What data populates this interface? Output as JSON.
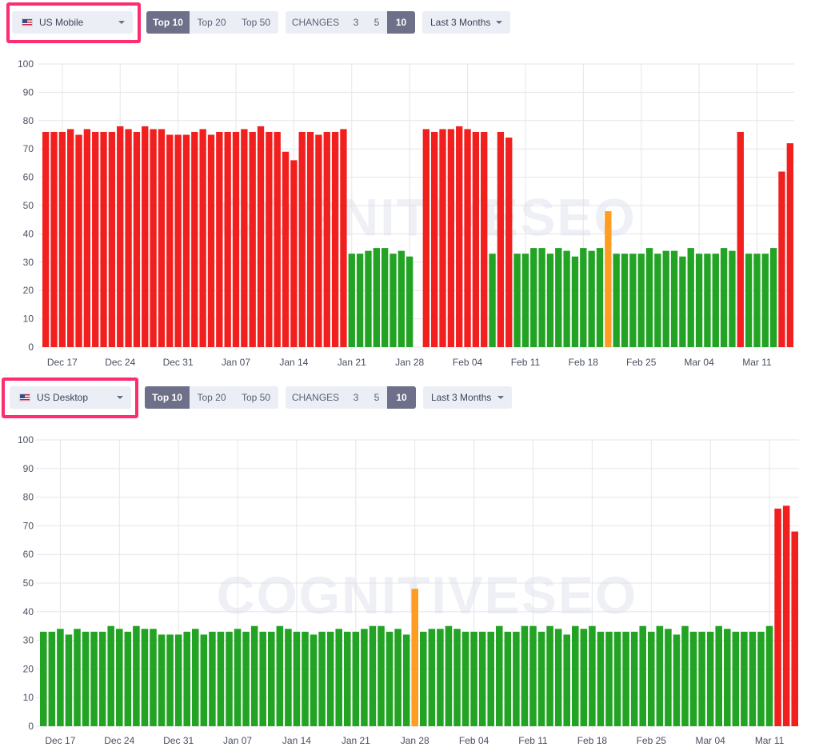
{
  "colors": {
    "red": "#f21f1f",
    "green": "#22a323",
    "orange": "#ff9d22",
    "grid": "#e4e6ea",
    "accent": "#ff2d6f",
    "active": "#6d7088"
  },
  "watermark": "COGNITIVESEO",
  "panels": [
    {
      "device_select": {
        "flag_icon": "us-flag-icon",
        "value": "US Mobile"
      },
      "top_tabs": [
        "Top 10",
        "Top 20",
        "Top 50"
      ],
      "top_active": "Top 10",
      "changes": {
        "label": "CHANGES",
        "options": [
          "3",
          "5",
          "10"
        ],
        "active": "10"
      },
      "period_select": {
        "value": "Last 3 Months"
      }
    },
    {
      "device_select": {
        "flag_icon": "us-flag-icon",
        "value": "US Desktop"
      },
      "top_tabs": [
        "Top 10",
        "Top 20",
        "Top 50"
      ],
      "top_active": "Top 10",
      "changes": {
        "label": "CHANGES",
        "options": [
          "3",
          "5",
          "10"
        ],
        "active": "10"
      },
      "period_select": {
        "value": "Last 3 Months"
      }
    }
  ],
  "chart_data": [
    {
      "type": "bar",
      "title": "",
      "ylim": [
        0,
        100
      ],
      "yticks": [
        0,
        10,
        20,
        30,
        40,
        50,
        60,
        70,
        80,
        90,
        100
      ],
      "xticks": [
        "Dec 17",
        "Dec 24",
        "Dec 31",
        "Jan 07",
        "Jan 14",
        "Jan 21",
        "Jan 28",
        "Feb 04",
        "Feb 11",
        "Feb 18",
        "Feb 25",
        "Mar 04",
        "Mar 11"
      ],
      "grid": true,
      "values": [
        76,
        76,
        76,
        77,
        75,
        77,
        76,
        76,
        76,
        78,
        77,
        76,
        78,
        77,
        77,
        75,
        75,
        75,
        76,
        77,
        75,
        76,
        76,
        76,
        77,
        76,
        78,
        76,
        76,
        69,
        66,
        76,
        76,
        75,
        76,
        76,
        77,
        33,
        33,
        34,
        35,
        35,
        33,
        34,
        32,
        0,
        77,
        76,
        77,
        77,
        78,
        77,
        76,
        76,
        33,
        76,
        74,
        33,
        33,
        35,
        35,
        33,
        35,
        34,
        32,
        35,
        34,
        35,
        48,
        33,
        33,
        33,
        33,
        35,
        33,
        34,
        34,
        32,
        35,
        33,
        33,
        33,
        35,
        34,
        76,
        33,
        33,
        33,
        35,
        62,
        72
      ],
      "colors": [
        "red",
        "red",
        "red",
        "red",
        "red",
        "red",
        "red",
        "red",
        "red",
        "red",
        "red",
        "red",
        "red",
        "red",
        "red",
        "red",
        "red",
        "red",
        "red",
        "red",
        "red",
        "red",
        "red",
        "red",
        "red",
        "red",
        "red",
        "red",
        "red",
        "red",
        "red",
        "red",
        "red",
        "red",
        "red",
        "red",
        "red",
        "green",
        "green",
        "green",
        "green",
        "green",
        "green",
        "green",
        "green",
        "none",
        "red",
        "red",
        "red",
        "red",
        "red",
        "red",
        "red",
        "red",
        "green",
        "red",
        "red",
        "green",
        "green",
        "green",
        "green",
        "green",
        "green",
        "green",
        "green",
        "green",
        "green",
        "green",
        "orange",
        "green",
        "green",
        "green",
        "green",
        "green",
        "green",
        "green",
        "green",
        "green",
        "green",
        "green",
        "green",
        "green",
        "green",
        "green",
        "red",
        "green",
        "green",
        "green",
        "green",
        "red",
        "red"
      ]
    },
    {
      "type": "bar",
      "title": "",
      "ylim": [
        0,
        100
      ],
      "yticks": [
        0,
        10,
        20,
        30,
        40,
        50,
        60,
        70,
        80,
        90,
        100
      ],
      "xticks": [
        "Dec 17",
        "Dec 24",
        "Dec 31",
        "Jan 07",
        "Jan 14",
        "Jan 21",
        "Jan 28",
        "Feb 04",
        "Feb 11",
        "Feb 18",
        "Feb 25",
        "Mar 04",
        "Mar 11"
      ],
      "grid": true,
      "values": [
        33,
        33,
        34,
        32,
        34,
        33,
        33,
        33,
        35,
        34,
        33,
        35,
        34,
        34,
        32,
        32,
        32,
        33,
        34,
        32,
        33,
        33,
        33,
        34,
        33,
        35,
        33,
        33,
        35,
        34,
        33,
        33,
        32,
        33,
        33,
        34,
        33,
        33,
        34,
        35,
        35,
        33,
        34,
        32,
        48,
        33,
        34,
        34,
        35,
        34,
        33,
        33,
        33,
        33,
        35,
        33,
        33,
        35,
        35,
        33,
        35,
        34,
        32,
        35,
        34,
        35,
        33,
        33,
        33,
        33,
        33,
        35,
        33,
        35,
        34,
        32,
        35,
        33,
        33,
        33,
        35,
        34,
        33,
        33,
        33,
        33,
        35,
        76,
        77,
        68
      ],
      "colors": [
        "green",
        "green",
        "green",
        "green",
        "green",
        "green",
        "green",
        "green",
        "green",
        "green",
        "green",
        "green",
        "green",
        "green",
        "green",
        "green",
        "green",
        "green",
        "green",
        "green",
        "green",
        "green",
        "green",
        "green",
        "green",
        "green",
        "green",
        "green",
        "green",
        "green",
        "green",
        "green",
        "green",
        "green",
        "green",
        "green",
        "green",
        "green",
        "green",
        "green",
        "green",
        "green",
        "green",
        "green",
        "orange",
        "green",
        "green",
        "green",
        "green",
        "green",
        "green",
        "green",
        "green",
        "green",
        "green",
        "green",
        "green",
        "green",
        "green",
        "green",
        "green",
        "green",
        "green",
        "green",
        "green",
        "green",
        "green",
        "green",
        "green",
        "green",
        "green",
        "green",
        "green",
        "green",
        "green",
        "green",
        "green",
        "green",
        "green",
        "green",
        "green",
        "green",
        "green",
        "green",
        "green",
        "green",
        "green",
        "red",
        "red",
        "red"
      ]
    }
  ]
}
